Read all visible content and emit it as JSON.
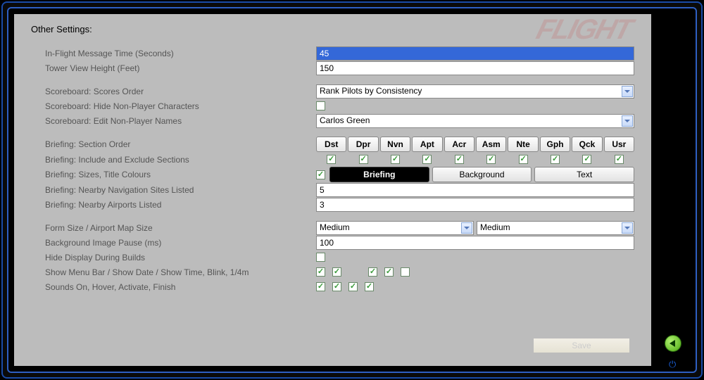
{
  "title": "Other Settings:",
  "watermark": "FLIGHT",
  "labels": {
    "msg_time": "In-Flight Message Time (Seconds)",
    "tower_height": "Tower View Height (Feet)",
    "scores_order": "Scoreboard: Scores Order",
    "hide_npc": "Scoreboard: Hide Non-Player Characters",
    "edit_npc": "Scoreboard: Edit Non-Player Names",
    "section_order": "Briefing: Section Order",
    "include_exclude": "Briefing: Include and Exclude Sections",
    "sizes_colours": "Briefing: Sizes, Title Colours",
    "nav_sites": "Briefing: Nearby Navigation Sites Listed",
    "airports": "Briefing: Nearby Airports Listed",
    "form_size": "Form Size / Airport Map Size",
    "bg_pause": "Background Image Pause (ms)",
    "hide_builds": "Hide Display During Builds",
    "menu_bar": "Show Menu Bar / Show Date / Show Time, Blink, 1/4m",
    "sounds": "Sounds On, Hover, Activate, Finish"
  },
  "values": {
    "msg_time": "45",
    "tower_height": "150",
    "scores_order": "Rank Pilots by Consistency",
    "npc_name": "Carlos Green",
    "nav_sites": "5",
    "airports": "3",
    "form_size": "Medium",
    "map_size": "Medium",
    "bg_pause": "100"
  },
  "sections": [
    "Dst",
    "Dpr",
    "Nvn",
    "Apt",
    "Acr",
    "Asm",
    "Nte",
    "Gph",
    "Qck",
    "Usr"
  ],
  "section_included": [
    true,
    true,
    true,
    true,
    true,
    true,
    true,
    true,
    true,
    true
  ],
  "tabs": {
    "briefing": "Briefing",
    "background": "Background",
    "text": "Text"
  },
  "checks": {
    "hide_npc": false,
    "sizes_lead": true,
    "hide_builds": false,
    "menu": [
      true,
      true,
      null,
      true,
      true,
      false
    ],
    "sounds": [
      true,
      true,
      true,
      true
    ]
  },
  "save": "Save",
  "colors": {
    "panel_bg": "#bcbcbc",
    "frame_outer": "#1a4ba8",
    "frame_inner": "#2e5fc2",
    "check_green": "#3a9a3a",
    "selected_bg": "#3468d8"
  }
}
